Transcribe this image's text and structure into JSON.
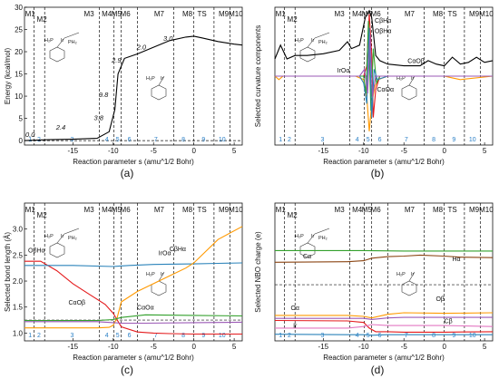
{
  "segments": [
    "M1",
    "M2",
    "M3",
    "M4",
    "M5",
    "M6",
    "M7",
    "M8",
    "TS",
    "M9",
    "M10"
  ],
  "regions": [
    "1",
    "2",
    "3",
    "4",
    "5",
    "6",
    "7",
    "8",
    "9",
    "10"
  ],
  "xlabel": "Reaction parameter s (amu^1/2 Bohr)",
  "colors": {
    "red": "#e41a1c",
    "blue": "#2b83ba",
    "orange": "#ff9900",
    "green": "#33a02c",
    "purple": "#9b59b6",
    "brown": "#8b4513",
    "pink": "#e377c2",
    "black": "#000000"
  },
  "chart_data": [
    {
      "type": "line",
      "panel_label": "(a)",
      "ylabel": "Energy (kcal/mol)",
      "xlim": [
        -21,
        6
      ],
      "ylim": [
        -1,
        30
      ],
      "xticks": [
        -15,
        -10,
        -5,
        0,
        5
      ],
      "yticks": [
        0,
        5,
        10,
        15,
        20,
        25,
        30
      ],
      "series": [
        {
          "color": "black",
          "x": [
            -21,
            -19.5,
            -18,
            -15,
            -12,
            -10.5,
            -9.8,
            -9.4,
            -8.6,
            -7,
            -5,
            -3,
            -1,
            0,
            1,
            3,
            5,
            6
          ],
          "y": [
            0,
            0.1,
            0.2,
            0.3,
            0.5,
            2.0,
            7.0,
            15.0,
            18.5,
            19.5,
            21.0,
            22.5,
            23.3,
            23.5,
            23.1,
            22.3,
            21.7,
            21.5
          ]
        }
      ],
      "annotations": [
        {
          "text": "0.0",
          "x": -20.3,
          "y": 0.8
        },
        {
          "text": "2.4",
          "x": -16.5,
          "y": 2.5
        },
        {
          "text": "3.8",
          "x": -11.8,
          "y": 4.6
        },
        {
          "text": "9.8",
          "x": -11.2,
          "y": 9.8
        },
        {
          "text": "2.9",
          "x": -9.6,
          "y": 17.6
        },
        {
          "text": "2.0",
          "x": -6.5,
          "y": 20.5
        },
        {
          "text": "3.0",
          "x": -3.2,
          "y": 22.5
        }
      ]
    },
    {
      "type": "line",
      "panel_label": "(b)",
      "ylabel": "Selected curvature components",
      "xlim": [
        -21,
        6
      ],
      "ylim": [
        -2,
        2
      ],
      "xticks": [
        -15,
        -10,
        -5,
        0,
        5
      ],
      "series": [
        {
          "color": "black",
          "x": [
            -21,
            -20.3,
            -19.5,
            -18.5,
            -17,
            -15,
            -13,
            -12,
            -11.5,
            -11,
            -10.5,
            -9.8,
            -9.3,
            -9,
            -8.5,
            -8,
            -7,
            -5,
            -3,
            -2,
            -1,
            0,
            1,
            2,
            3,
            4,
            5,
            6
          ],
          "y": [
            0.5,
            0.9,
            0.5,
            0.6,
            0.6,
            0.65,
            0.75,
            1.0,
            0.8,
            0.85,
            0.9,
            1.7,
            1.9,
            1.7,
            0.6,
            0.45,
            0.35,
            0.3,
            0.3,
            0.45,
            0.35,
            0.3,
            0.55,
            0.35,
            0.4,
            0.55,
            0.4,
            0.45
          ]
        },
        {
          "color": "orange",
          "x": [
            -21,
            -20.5,
            -20,
            -19,
            -15,
            -11,
            -10,
            -9.6,
            -9.3,
            -9,
            -8.6,
            -8.2,
            -7,
            -3,
            0,
            1,
            2,
            6
          ],
          "y": [
            0,
            -0.1,
            0,
            0,
            0,
            0,
            -0.1,
            -0.6,
            -1.6,
            -0.8,
            -0.3,
            -0.1,
            0,
            0,
            0,
            -0.05,
            -0.1,
            0
          ]
        },
        {
          "color": "red",
          "x": [
            -21,
            -12,
            -10,
            -9.6,
            -9.3,
            -9,
            -8.8,
            -8.5,
            -8,
            -6,
            6
          ],
          "y": [
            0,
            0,
            0,
            0.3,
            1.8,
            0.6,
            -1.2,
            -0.4,
            0,
            0,
            0
          ]
        },
        {
          "color": "green",
          "x": [
            -21,
            -12,
            -10,
            -9.7,
            -9.4,
            -9.1,
            -8.8,
            -8.4,
            -8,
            6
          ],
          "y": [
            0,
            0,
            0,
            -0.5,
            1.6,
            -1.0,
            0.8,
            -0.2,
            0,
            0
          ]
        },
        {
          "color": "blue",
          "x": [
            -21,
            -12,
            -10.5,
            -10,
            -9.6,
            -9.3,
            -9.0,
            -8.7,
            -8.3,
            -7,
            6
          ],
          "y": [
            0,
            0,
            0,
            -0.2,
            -0.8,
            1.4,
            -1.2,
            0.2,
            -0.1,
            0,
            0
          ]
        },
        {
          "color": "purple",
          "x": [
            -21,
            -12,
            -10.5,
            -9.9,
            -9.5,
            -9.2,
            -8.9,
            -8.5,
            -7,
            6
          ],
          "y": [
            0,
            0,
            0,
            0.2,
            -0.5,
            1.2,
            -0.6,
            0,
            0,
            0
          ]
        }
      ],
      "annotations": [
        {
          "text": "CβHα",
          "x": -7.6,
          "y": 1.55
        },
        {
          "text": "OβHα",
          "x": -7.6,
          "y": 1.25
        },
        {
          "text": "IrOα",
          "x": -12.5,
          "y": 0.1
        },
        {
          "text": "CαOβ",
          "x": -3.5,
          "y": 0.38
        },
        {
          "text": "CαOα",
          "x": -7.3,
          "y": -0.45
        }
      ]
    },
    {
      "type": "line",
      "panel_label": "(c)",
      "ylabel": "Selected bond length (Å)",
      "xlim": [
        -21,
        6
      ],
      "ylim": [
        0.85,
        3.5
      ],
      "xticks": [
        -15,
        -10,
        -5,
        0,
        5
      ],
      "yticks": [
        1.0,
        1.5,
        2.0,
        2.5,
        3.0
      ],
      "series": [
        {
          "name": "OβHα",
          "color": "red",
          "x": [
            -21,
            -19,
            -17,
            -15,
            -13,
            -11,
            -10,
            -9,
            -7,
            -5,
            -3,
            0,
            3,
            6
          ],
          "y": [
            2.38,
            2.38,
            2.2,
            1.95,
            1.75,
            1.55,
            1.38,
            1.12,
            1.02,
            1.0,
            0.99,
            0.98,
            0.98,
            0.98
          ]
        },
        {
          "name": "IrOα",
          "color": "blue",
          "x": [
            -21,
            -15,
            -10,
            -8,
            -5,
            0,
            3,
            6
          ],
          "y": [
            2.3,
            2.3,
            2.28,
            2.3,
            2.32,
            2.33,
            2.34,
            2.35
          ]
        },
        {
          "name": "CβHα",
          "color": "orange",
          "x": [
            -21,
            -12,
            -10.5,
            -10,
            -9.5,
            -9,
            -7,
            -5,
            -3,
            -1,
            0,
            1,
            3,
            6
          ],
          "y": [
            1.1,
            1.1,
            1.11,
            1.15,
            1.3,
            1.6,
            1.8,
            1.95,
            2.1,
            2.25,
            2.35,
            2.5,
            2.8,
            3.05
          ]
        },
        {
          "name": "CαOβ",
          "color": "green",
          "x": [
            -21,
            -12,
            -10,
            -9,
            -6,
            0,
            6
          ],
          "y": [
            1.24,
            1.24,
            1.26,
            1.3,
            1.35,
            1.34,
            1.33
          ]
        },
        {
          "name": "CαOα",
          "color": "purple",
          "x": [
            -21,
            -12,
            -10,
            -9,
            -6,
            0,
            6
          ],
          "y": [
            1.22,
            1.22,
            1.2,
            1.19,
            1.19,
            1.2,
            1.21
          ]
        }
      ],
      "annotations": [
        {
          "text": "OβHα",
          "x": -19.5,
          "y": 2.55
        },
        {
          "text": "CαOβ",
          "x": -14.5,
          "y": 1.55
        },
        {
          "text": "IrOα",
          "x": -3.6,
          "y": 2.5
        },
        {
          "text": "CβHα",
          "x": -2.0,
          "y": 2.58
        },
        {
          "text": "CαOα",
          "x": -6.0,
          "y": 1.45
        }
      ]
    },
    {
      "type": "line",
      "panel_label": "(d)",
      "ylabel": "Selected NBO charge (e)",
      "xlim": [
        -21,
        6
      ],
      "ylim": [
        -1.1,
        1.6
      ],
      "xticks": [
        -15,
        -10,
        -5,
        0,
        5
      ],
      "series": [
        {
          "color": "green",
          "x": [
            -21,
            -10,
            -5,
            0,
            6
          ],
          "y": [
            0.67,
            0.67,
            0.66,
            0.66,
            0.66
          ]
        },
        {
          "color": "brown",
          "x": [
            -21,
            -12,
            -10,
            -9,
            -7,
            -5,
            -3,
            0,
            2,
            6
          ],
          "y": [
            0.44,
            0.45,
            0.47,
            0.52,
            0.55,
            0.56,
            0.58,
            0.56,
            0.54,
            0.53
          ]
        },
        {
          "color": "orange",
          "x": [
            -21,
            -12,
            -10,
            -9,
            -7,
            -5,
            0,
            6
          ],
          "y": [
            -0.6,
            -0.6,
            -0.62,
            -0.65,
            -0.58,
            -0.55,
            -0.56,
            -0.55
          ]
        },
        {
          "color": "purple",
          "x": [
            -21,
            -10,
            -9,
            -7,
            -5,
            0,
            6
          ],
          "y": [
            -0.66,
            -0.66,
            -0.68,
            -0.65,
            -0.64,
            -0.64,
            -0.64
          ]
        },
        {
          "color": "red",
          "x": [
            -21,
            -12,
            -10,
            -9.3,
            -8.5,
            -7,
            -5,
            0,
            6
          ],
          "y": [
            -0.7,
            -0.71,
            -0.74,
            -0.85,
            -0.92,
            -0.92,
            -0.93,
            -0.93,
            -0.92
          ]
        },
        {
          "color": "pink",
          "x": [
            -21,
            -12,
            -10,
            -9,
            -7,
            -3,
            0,
            6
          ],
          "y": [
            -0.85,
            -0.85,
            -0.82,
            -0.78,
            -0.8,
            -0.8,
            -0.8,
            -0.82
          ]
        },
        {
          "color": "blue",
          "x": [
            -21,
            -12,
            -10,
            -9,
            -7,
            -5,
            0,
            6
          ],
          "y": [
            -0.97,
            -0.98,
            -0.98,
            -0.99,
            -0.98,
            -0.98,
            -0.98,
            -0.98
          ]
        }
      ],
      "annotations": [
        {
          "text": "Cα",
          "x": -17.0,
          "y": 0.52
        },
        {
          "text": "Hα",
          "x": 1.5,
          "y": 0.46
        },
        {
          "text": "Oβ",
          "x": -0.5,
          "y": -0.32
        },
        {
          "text": "Oα",
          "x": -18.5,
          "y": -0.5
        },
        {
          "text": "Ir",
          "x": -18.5,
          "y": -0.84
        },
        {
          "text": "Cβ",
          "x": 0.5,
          "y": -0.75
        }
      ]
    }
  ]
}
